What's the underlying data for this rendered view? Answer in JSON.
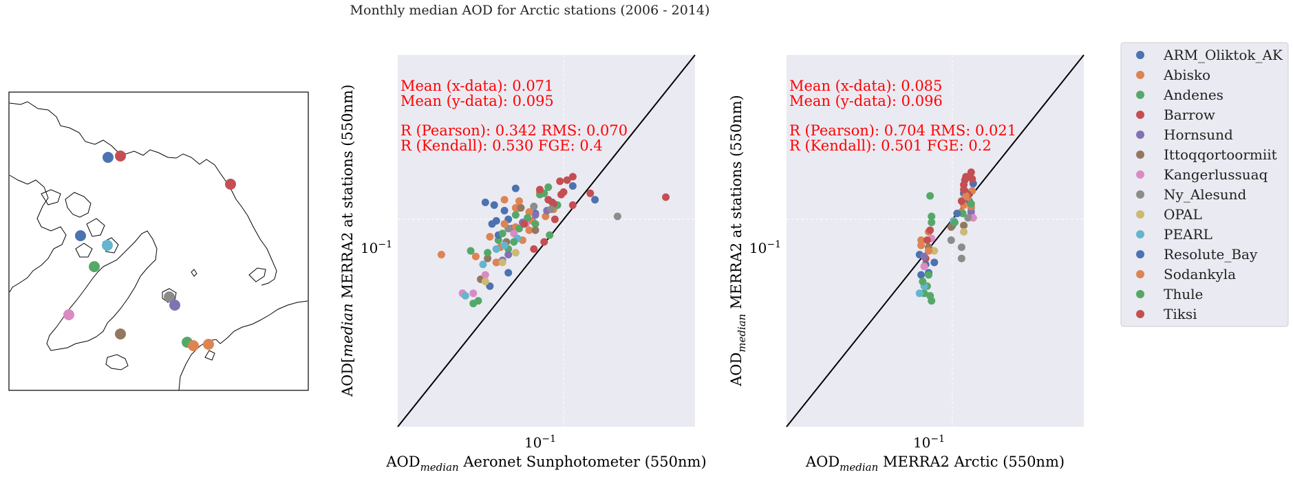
{
  "figure": {
    "title": "Monthly median AOD for Arctic stations (2006 - 2014)"
  },
  "colors": {
    "axes_bg": "#eaeaf2",
    "grid": "#ffffff",
    "one_to_one": "#000000",
    "stats_text": "#ff0000",
    "map_bg": "#ffffff"
  },
  "legend": {
    "location": "right of plots",
    "entries": [
      {
        "name": "ARM_Oliktok_AK",
        "color": "#4c72b0"
      },
      {
        "name": "Abisko",
        "color": "#dd8452"
      },
      {
        "name": "Andenes",
        "color": "#55a868"
      },
      {
        "name": "Barrow",
        "color": "#c44e52"
      },
      {
        "name": "Hornsund",
        "color": "#8172b3"
      },
      {
        "name": "Ittoqqortoormiit",
        "color": "#937860"
      },
      {
        "name": "Kangerlussuaq",
        "color": "#da8bc3"
      },
      {
        "name": "Ny_Alesund",
        "color": "#8c8c8c"
      },
      {
        "name": "OPAL",
        "color": "#ccb974"
      },
      {
        "name": "PEARL",
        "color": "#64b5cd"
      },
      {
        "name": "Resolute_Bay",
        "color": "#4c72b0"
      },
      {
        "name": "Sodankyla",
        "color": "#dd8452"
      },
      {
        "name": "Thule",
        "color": "#55a868"
      },
      {
        "name": "Tiksi",
        "color": "#c44e52"
      }
    ]
  },
  "map": {
    "type": "polar stereographic station map",
    "stations": [
      {
        "name": "ARM_Oliktok_AK",
        "color": "#4c72b0"
      },
      {
        "name": "Barrow",
        "color": "#c44e52"
      },
      {
        "name": "Tiksi",
        "color": "#c44e52"
      },
      {
        "name": "Resolute_Bay",
        "color": "#4c72b0"
      },
      {
        "name": "PEARL",
        "color": "#64b5cd"
      },
      {
        "name": "Thule",
        "color": "#55a868"
      },
      {
        "name": "Kangerlussuaq",
        "color": "#da8bc3"
      },
      {
        "name": "Ittoqqortoormiit",
        "color": "#937860"
      },
      {
        "name": "Ny_Alesund",
        "color": "#8c8c8c"
      },
      {
        "name": "Hornsund",
        "color": "#8172b3"
      },
      {
        "name": "Andenes",
        "color": "#55a868"
      },
      {
        "name": "Abisko",
        "color": "#dd8452"
      },
      {
        "name": "Sodankyla",
        "color": "#dd8452"
      }
    ]
  },
  "chart_data": [
    {
      "type": "scatter",
      "title": "",
      "xlabel": "AOD_median Aeronet Sunphotometer (550nm)",
      "ylabel": "AOD_[median MERRA2 at stations (550nm)",
      "xscale": "log",
      "yscale": "log",
      "xlim": [
        0.025,
        0.3
      ],
      "ylim": [
        0.025,
        0.3
      ],
      "xticks": [
        0.1
      ],
      "yticks": [
        0.1
      ],
      "tick_labels": {
        "x": "10^-1",
        "y": "10^-1"
      },
      "grid": true,
      "one_to_one_line": true,
      "stats": [
        "Mean (x-data): 0.071",
        "Mean (y-data): 0.095",
        "R (Pearson): 0.342 RMS: 0.070",
        "R (Kendall): 0.530  FGE: 0.4"
      ],
      "points": [
        {
          "s": 0,
          "x": 0.052,
          "y": 0.112
        },
        {
          "s": 0,
          "x": 0.057,
          "y": 0.099
        },
        {
          "s": 0,
          "x": 0.055,
          "y": 0.097
        },
        {
          "s": 0,
          "x": 0.067,
          "y": 0.123
        },
        {
          "s": 0,
          "x": 0.063,
          "y": 0.1
        },
        {
          "s": 0,
          "x": 0.057,
          "y": 0.075
        },
        {
          "s": 0,
          "x": 0.063,
          "y": 0.07
        },
        {
          "s": 0,
          "x": 0.069,
          "y": 0.108
        },
        {
          "s": 0,
          "x": 0.079,
          "y": 0.104
        },
        {
          "s": 0,
          "x": 0.091,
          "y": 0.112
        },
        {
          "s": 0,
          "x": 0.108,
          "y": 0.125
        },
        {
          "s": 0,
          "x": 0.13,
          "y": 0.114
        },
        {
          "s": 0,
          "x": 0.054,
          "y": 0.064
        },
        {
          "s": 0,
          "x": 0.065,
          "y": 0.094
        },
        {
          "s": 1,
          "x": 0.036,
          "y": 0.079
        },
        {
          "s": 1,
          "x": 0.061,
          "y": 0.114
        },
        {
          "s": 1,
          "x": 0.067,
          "y": 0.108
        },
        {
          "s": 1,
          "x": 0.077,
          "y": 0.099
        },
        {
          "s": 1,
          "x": 0.082,
          "y": 0.12
        },
        {
          "s": 1,
          "x": 0.067,
          "y": 0.095
        },
        {
          "s": 1,
          "x": 0.057,
          "y": 0.075
        },
        {
          "s": 1,
          "x": 0.071,
          "y": 0.087
        },
        {
          "s": 1,
          "x": 0.086,
          "y": 0.102
        },
        {
          "s": 1,
          "x": 0.059,
          "y": 0.083
        },
        {
          "s": 1,
          "x": 0.092,
          "y": 0.107
        },
        {
          "s": 1,
          "x": 0.075,
          "y": 0.093
        },
        {
          "s": 2,
          "x": 0.046,
          "y": 0.081
        },
        {
          "s": 2,
          "x": 0.058,
          "y": 0.087
        },
        {
          "s": 2,
          "x": 0.063,
          "y": 0.082
        },
        {
          "s": 2,
          "x": 0.069,
          "y": 0.094
        },
        {
          "s": 2,
          "x": 0.082,
          "y": 0.118
        },
        {
          "s": 2,
          "x": 0.089,
          "y": 0.09
        },
        {
          "s": 2,
          "x": 0.095,
          "y": 0.11
        },
        {
          "s": 2,
          "x": 0.047,
          "y": 0.057
        },
        {
          "s": 2,
          "x": 0.049,
          "y": 0.058
        },
        {
          "s": 2,
          "x": 0.067,
          "y": 0.103
        },
        {
          "s": 2,
          "x": 0.079,
          "y": 0.097
        },
        {
          "s": 2,
          "x": 0.085,
          "y": 0.119
        },
        {
          "s": 3,
          "x": 0.097,
          "y": 0.129
        },
        {
          "s": 3,
          "x": 0.103,
          "y": 0.13
        },
        {
          "s": 3,
          "x": 0.108,
          "y": 0.133
        },
        {
          "s": 3,
          "x": 0.1,
          "y": 0.12
        },
        {
          "s": 3,
          "x": 0.092,
          "y": 0.111
        },
        {
          "s": 3,
          "x": 0.125,
          "y": 0.119
        },
        {
          "s": 3,
          "x": 0.235,
          "y": 0.116
        },
        {
          "s": 3,
          "x": 0.108,
          "y": 0.11
        },
        {
          "s": 3,
          "x": 0.085,
          "y": 0.086
        },
        {
          "s": 3,
          "x": 0.078,
          "y": 0.082
        },
        {
          "s": 4,
          "x": 0.063,
          "y": 0.079
        },
        {
          "s": 4,
          "x": 0.071,
          "y": 0.098
        },
        {
          "s": 4,
          "x": 0.079,
          "y": 0.103
        },
        {
          "s": 4,
          "x": 0.087,
          "y": 0.106
        },
        {
          "s": 4,
          "x": 0.06,
          "y": 0.076
        },
        {
          "s": 5,
          "x": 0.043,
          "y": 0.061
        },
        {
          "s": 5,
          "x": 0.05,
          "y": 0.067
        },
        {
          "s": 5,
          "x": 0.053,
          "y": 0.077
        },
        {
          "s": 5,
          "x": 0.062,
          "y": 0.086
        },
        {
          "s": 5,
          "x": 0.07,
          "y": 0.108
        },
        {
          "s": 5,
          "x": 0.079,
          "y": 0.093
        },
        {
          "s": 6,
          "x": 0.043,
          "y": 0.061
        },
        {
          "s": 6,
          "x": 0.047,
          "y": 0.061
        },
        {
          "s": 6,
          "x": 0.052,
          "y": 0.069
        },
        {
          "s": 6,
          "x": 0.057,
          "y": 0.082
        },
        {
          "s": 6,
          "x": 0.066,
          "y": 0.091
        },
        {
          "s": 6,
          "x": 0.073,
          "y": 0.097
        },
        {
          "s": 7,
          "x": 0.157,
          "y": 0.102
        },
        {
          "s": 7,
          "x": 0.063,
          "y": 0.094
        },
        {
          "s": 7,
          "x": 0.078,
          "y": 0.109
        },
        {
          "s": 7,
          "x": 0.09,
          "y": 0.107
        },
        {
          "s": 8,
          "x": 0.052,
          "y": 0.066
        },
        {
          "s": 8,
          "x": 0.06,
          "y": 0.075
        },
        {
          "s": 8,
          "x": 0.067,
          "y": 0.08
        },
        {
          "s": 9,
          "x": 0.044,
          "y": 0.06
        },
        {
          "s": 9,
          "x": 0.051,
          "y": 0.074
        },
        {
          "s": 9,
          "x": 0.057,
          "y": 0.082
        },
        {
          "s": 9,
          "x": 0.061,
          "y": 0.084
        },
        {
          "s": 9,
          "x": 0.068,
          "y": 0.088
        },
        {
          "s": 10,
          "x": 0.056,
          "y": 0.11
        },
        {
          "s": 10,
          "x": 0.061,
          "y": 0.106
        },
        {
          "s": 10,
          "x": 0.058,
          "y": 0.09
        },
        {
          "s": 11,
          "x": 0.048,
          "y": 0.078
        },
        {
          "s": 11,
          "x": 0.054,
          "y": 0.089
        },
        {
          "s": 11,
          "x": 0.061,
          "y": 0.097
        },
        {
          "s": 11,
          "x": 0.069,
          "y": 0.113
        },
        {
          "s": 11,
          "x": 0.075,
          "y": 0.105
        },
        {
          "s": 12,
          "x": 0.053,
          "y": 0.08
        },
        {
          "s": 12,
          "x": 0.06,
          "y": 0.091
        },
        {
          "s": 12,
          "x": 0.074,
          "y": 0.101
        },
        {
          "s": 12,
          "x": 0.088,
          "y": 0.124
        },
        {
          "s": 12,
          "x": 0.066,
          "y": 0.086
        },
        {
          "s": 13,
          "x": 0.082,
          "y": 0.122
        },
        {
          "s": 13,
          "x": 0.088,
          "y": 0.114
        },
        {
          "s": 13,
          "x": 0.098,
          "y": 0.118
        },
        {
          "s": 13,
          "x": 0.072,
          "y": 0.097
        },
        {
          "s": 13,
          "x": 0.093,
          "y": 0.1
        }
      ]
    },
    {
      "type": "scatter",
      "title": "",
      "xlabel": "AOD_median MERRA2 Arctic (550nm)",
      "ylabel": "AOD_median MERRA2 at stations (550nm)",
      "xscale": "log",
      "yscale": "log",
      "xlim": [
        0.025,
        0.3
      ],
      "ylim": [
        0.025,
        0.3
      ],
      "xticks": [
        0.1
      ],
      "yticks": [
        0.1
      ],
      "tick_labels": {
        "x": "10^-1",
        "y": "10^-1"
      },
      "grid": true,
      "one_to_one_line": true,
      "stats": [
        "Mean (x-data): 0.085",
        "Mean (y-data): 0.096",
        "R (Pearson): 0.704 RMS: 0.021",
        "R (Kendall): 0.501  FGE: 0.2"
      ],
      "points": [
        {
          "s": 0,
          "x": 0.077,
          "y": 0.069
        },
        {
          "s": 0,
          "x": 0.08,
          "y": 0.074
        },
        {
          "s": 0,
          "x": 0.076,
          "y": 0.079
        },
        {
          "s": 0,
          "x": 0.112,
          "y": 0.12
        },
        {
          "s": 0,
          "x": 0.115,
          "y": 0.113
        },
        {
          "s": 0,
          "x": 0.119,
          "y": 0.127
        },
        {
          "s": 1,
          "x": 0.077,
          "y": 0.084
        },
        {
          "s": 1,
          "x": 0.082,
          "y": 0.092
        },
        {
          "s": 1,
          "x": 0.11,
          "y": 0.11
        },
        {
          "s": 1,
          "x": 0.114,
          "y": 0.116
        },
        {
          "s": 1,
          "x": 0.118,
          "y": 0.121
        },
        {
          "s": 1,
          "x": 0.108,
          "y": 0.105
        },
        {
          "s": 2,
          "x": 0.079,
          "y": 0.061
        },
        {
          "s": 2,
          "x": 0.083,
          "y": 0.06
        },
        {
          "s": 2,
          "x": 0.081,
          "y": 0.064
        },
        {
          "s": 2,
          "x": 0.084,
          "y": 0.098
        },
        {
          "s": 2,
          "x": 0.083,
          "y": 0.117
        },
        {
          "s": 2,
          "x": 0.109,
          "y": 0.104
        },
        {
          "s": 2,
          "x": 0.117,
          "y": 0.108
        },
        {
          "s": 2,
          "x": 0.084,
          "y": 0.058
        },
        {
          "s": 3,
          "x": 0.112,
          "y": 0.133
        },
        {
          "s": 3,
          "x": 0.118,
          "y": 0.131
        },
        {
          "s": 3,
          "x": 0.11,
          "y": 0.126
        },
        {
          "s": 3,
          "x": 0.114,
          "y": 0.118
        },
        {
          "s": 3,
          "x": 0.108,
          "y": 0.113
        },
        {
          "s": 3,
          "x": 0.08,
          "y": 0.077
        },
        {
          "s": 4,
          "x": 0.079,
          "y": 0.078
        },
        {
          "s": 4,
          "x": 0.1,
          "y": 0.096
        },
        {
          "s": 4,
          "x": 0.117,
          "y": 0.105
        },
        {
          "s": 5,
          "x": 0.082,
          "y": 0.083
        },
        {
          "s": 5,
          "x": 0.099,
          "y": 0.095
        },
        {
          "s": 5,
          "x": 0.11,
          "y": 0.096
        },
        {
          "s": 6,
          "x": 0.079,
          "y": 0.073
        },
        {
          "s": 6,
          "x": 0.084,
          "y": 0.088
        },
        {
          "s": 6,
          "x": 0.119,
          "y": 0.101
        },
        {
          "s": 7,
          "x": 0.099,
          "y": 0.087
        },
        {
          "s": 7,
          "x": 0.108,
          "y": 0.083
        },
        {
          "s": 7,
          "x": 0.108,
          "y": 0.077
        },
        {
          "s": 7,
          "x": 0.114,
          "y": 0.101
        },
        {
          "s": 8,
          "x": 0.086,
          "y": 0.081
        },
        {
          "s": 8,
          "x": 0.11,
          "y": 0.092
        },
        {
          "s": 9,
          "x": 0.076,
          "y": 0.061
        },
        {
          "s": 9,
          "x": 0.079,
          "y": 0.064
        },
        {
          "s": 9,
          "x": 0.101,
          "y": 0.099
        },
        {
          "s": 10,
          "x": 0.082,
          "y": 0.07
        },
        {
          "s": 10,
          "x": 0.086,
          "y": 0.075
        },
        {
          "s": 10,
          "x": 0.104,
          "y": 0.104
        },
        {
          "s": 10,
          "x": 0.11,
          "y": 0.119
        },
        {
          "s": 11,
          "x": 0.077,
          "y": 0.087
        },
        {
          "s": 11,
          "x": 0.082,
          "y": 0.081
        },
        {
          "s": 11,
          "x": 0.112,
          "y": 0.117
        },
        {
          "s": 11,
          "x": 0.117,
          "y": 0.109
        },
        {
          "s": 12,
          "x": 0.078,
          "y": 0.066
        },
        {
          "s": 12,
          "x": 0.082,
          "y": 0.069
        },
        {
          "s": 12,
          "x": 0.084,
          "y": 0.102
        },
        {
          "s": 12,
          "x": 0.102,
          "y": 0.098
        },
        {
          "s": 12,
          "x": 0.117,
          "y": 0.111
        },
        {
          "s": 13,
          "x": 0.081,
          "y": 0.087
        },
        {
          "s": 13,
          "x": 0.083,
          "y": 0.093
        },
        {
          "s": 13,
          "x": 0.111,
          "y": 0.13
        },
        {
          "s": 13,
          "x": 0.117,
          "y": 0.137
        },
        {
          "s": 13,
          "x": 0.11,
          "y": 0.122
        }
      ]
    }
  ]
}
